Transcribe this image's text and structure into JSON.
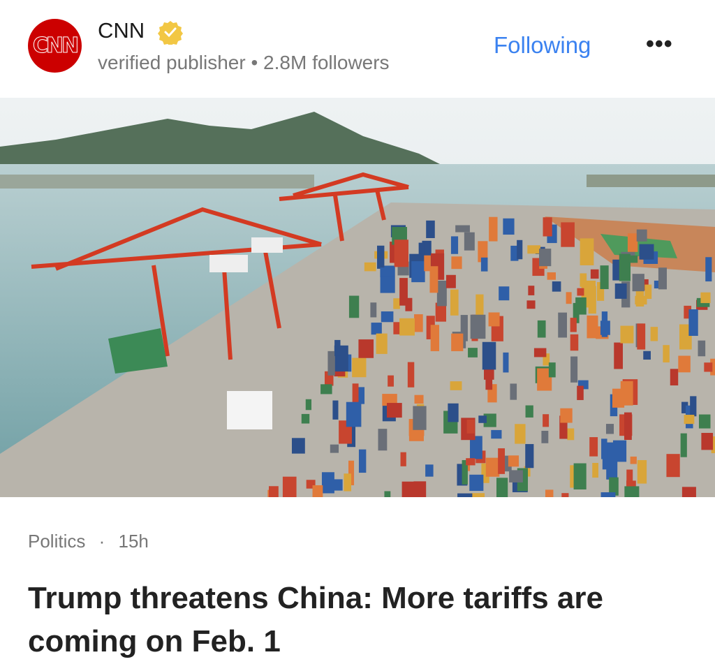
{
  "publisher": {
    "logo_text": "CNN",
    "name": "CNN",
    "verified": true,
    "badge_icon": "verified-badge-icon",
    "meta_type": "verified publisher",
    "separator": "•",
    "followers": "2.8M followers",
    "follow_label": "Following",
    "more_icon": "more-horizontal-icon"
  },
  "article": {
    "category": "Politics",
    "separator": "·",
    "age": "15h",
    "title": "Trump threatens China: More tariffs are coming on Feb. 1"
  },
  "colors": {
    "accent": "#3b82f0",
    "brand": "#cc0000",
    "badge": "#f2c744"
  }
}
